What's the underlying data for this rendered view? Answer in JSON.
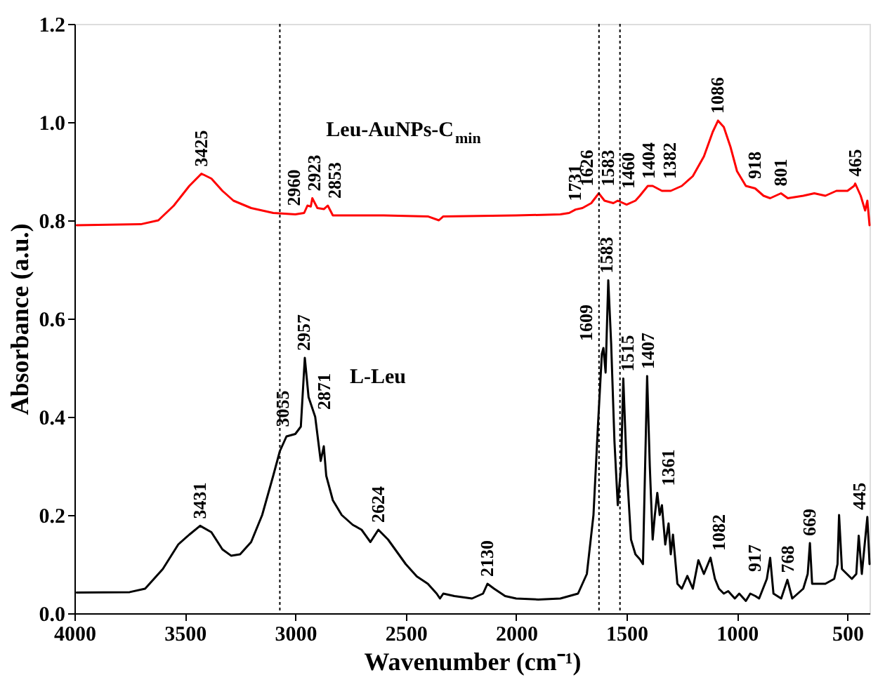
{
  "chart_data": {
    "type": "line",
    "xlabel": "Wavenumber (cm⁻¹)",
    "ylabel": "Absorbance (a.u.)",
    "xlim": [
      4000,
      400
    ],
    "xticks": [
      4000,
      3500,
      3000,
      2500,
      2000,
      1500,
      1000,
      500
    ],
    "ylim": [
      0,
      1.2
    ],
    "yticks": [
      {
        "value": 0,
        "label": "0.0"
      },
      0.2,
      0.4,
      0.6,
      0.8,
      {
        "value": 1,
        "label": "1.0"
      },
      1.2
    ],
    "grid": false,
    "legend": false,
    "marker": "none",
    "line_style": "solid",
    "series": [
      {
        "name": "Leu-AuNPs-C$_{min}$",
        "color": "#ff0000",
        "x": [
          3990,
          3700,
          3620,
          3550,
          3480,
          3425,
          3380,
          3330,
          3280,
          3200,
          3100,
          3000,
          2960,
          2945,
          2930,
          2923,
          2900,
          2870,
          2853,
          2830,
          2600,
          2400,
          2350,
          2330,
          2000,
          1800,
          1760,
          1731,
          1700,
          1660,
          1626,
          1600,
          1560,
          1540,
          1500,
          1460,
          1440,
          1404,
          1382,
          1340,
          1300,
          1250,
          1200,
          1150,
          1110,
          1086,
          1060,
          1030,
          1000,
          960,
          918,
          880,
          850,
          801,
          770,
          700,
          650,
          600,
          550,
          500,
          470,
          465,
          440,
          420,
          410,
          400
        ],
        "values": [
          0.79,
          0.792,
          0.8,
          0.83,
          0.87,
          0.895,
          0.885,
          0.86,
          0.84,
          0.825,
          0.815,
          0.812,
          0.815,
          0.83,
          0.828,
          0.845,
          0.825,
          0.823,
          0.83,
          0.81,
          0.81,
          0.808,
          0.8,
          0.808,
          0.81,
          0.812,
          0.815,
          0.822,
          0.825,
          0.835,
          0.855,
          0.84,
          0.835,
          0.84,
          0.832,
          0.84,
          0.85,
          0.87,
          0.87,
          0.86,
          0.86,
          0.87,
          0.89,
          0.93,
          0.98,
          1.003,
          0.99,
          0.95,
          0.9,
          0.87,
          0.865,
          0.85,
          0.845,
          0.855,
          0.845,
          0.85,
          0.855,
          0.85,
          0.86,
          0.86,
          0.87,
          0.875,
          0.85,
          0.82,
          0.84,
          0.79
        ]
      },
      {
        "name": "L-Leu",
        "color": "#000000",
        "x": [
          3990,
          3750,
          3680,
          3600,
          3530,
          3480,
          3431,
          3380,
          3330,
          3290,
          3250,
          3200,
          3150,
          3100,
          3070,
          3040,
          3000,
          2975,
          2957,
          2940,
          2910,
          2885,
          2871,
          2860,
          2830,
          2790,
          2740,
          2700,
          2660,
          2624,
          2580,
          2500,
          2450,
          2400,
          2360,
          2345,
          2330,
          2280,
          2200,
          2150,
          2130,
          2100,
          2050,
          2000,
          1900,
          1800,
          1720,
          1680,
          1650,
          1630,
          1612,
          1605,
          1595,
          1583,
          1570,
          1555,
          1540,
          1525,
          1515,
          1500,
          1480,
          1460,
          1440,
          1426,
          1407,
          1395,
          1382,
          1372,
          1361,
          1350,
          1340,
          1325,
          1310,
          1300,
          1290,
          1270,
          1250,
          1225,
          1200,
          1175,
          1150,
          1120,
          1100,
          1082,
          1060,
          1040,
          1010,
          990,
          960,
          940,
          917,
          900,
          865,
          850,
          835,
          800,
          772,
          750,
          700,
          680,
          670,
          660,
          600,
          560,
          545,
          538,
          525,
          480,
          460,
          449,
          435,
          410,
          400
        ],
        "values": [
          0.042,
          0.043,
          0.05,
          0.09,
          0.14,
          0.16,
          0.178,
          0.165,
          0.13,
          0.117,
          0.12,
          0.145,
          0.2,
          0.28,
          0.33,
          0.36,
          0.365,
          0.38,
          0.52,
          0.44,
          0.4,
          0.31,
          0.34,
          0.28,
          0.23,
          0.2,
          0.18,
          0.17,
          0.145,
          0.17,
          0.15,
          0.1,
          0.075,
          0.06,
          0.04,
          0.03,
          0.04,
          0.035,
          0.03,
          0.04,
          0.06,
          0.05,
          0.035,
          0.03,
          0.028,
          0.03,
          0.04,
          0.08,
          0.2,
          0.38,
          0.528,
          0.54,
          0.49,
          0.678,
          0.55,
          0.35,
          0.22,
          0.3,
          0.478,
          0.3,
          0.15,
          0.12,
          0.11,
          0.1,
          0.483,
          0.3,
          0.15,
          0.2,
          0.245,
          0.2,
          0.22,
          0.14,
          0.183,
          0.12,
          0.16,
          0.06,
          0.05,
          0.076,
          0.05,
          0.108,
          0.08,
          0.113,
          0.07,
          0.05,
          0.04,
          0.045,
          0.03,
          0.04,
          0.025,
          0.04,
          0.035,
          0.03,
          0.07,
          0.113,
          0.04,
          0.03,
          0.068,
          0.03,
          0.05,
          0.08,
          0.143,
          0.06,
          0.06,
          0.07,
          0.1,
          0.2,
          0.09,
          0.07,
          0.08,
          0.158,
          0.08,
          0.196,
          0.1
        ]
      }
    ],
    "ref_lines": [
      {
        "axis": "x",
        "value": 3070,
        "color": "#000000",
        "line_style": "dotted"
      },
      {
        "axis": "x",
        "value": 1625,
        "color": "#000000",
        "line_style": "dotted"
      },
      {
        "axis": "x",
        "value": 1530,
        "color": "#000000",
        "line_style": "dotted"
      }
    ],
    "annotations": [
      {
        "text": "3425",
        "x": 3425,
        "y": 0.895
      },
      {
        "text": "2960",
        "x": 2960,
        "y": 0.815
      },
      {
        "text": "2923",
        "x": 2923,
        "y": 0.845
      },
      {
        "text": "2853",
        "x": 2853,
        "y": 0.83
      },
      {
        "text": "1731",
        "x": 1731,
        "y": 0.822
      },
      {
        "text": "1626",
        "x": 1626,
        "y": 0.855
      },
      {
        "text": "1583",
        "x": 1583,
        "y": 0.835
      },
      {
        "text": "1460",
        "x": 1460,
        "y": 0.84
      },
      {
        "text": "1404",
        "x": 1404,
        "y": 0.87
      },
      {
        "text": "1382",
        "x": 1382,
        "y": 0.87
      },
      {
        "text": "1086",
        "x": 1086,
        "y": 1.003
      },
      {
        "text": "918",
        "x": 918,
        "y": 0.865
      },
      {
        "text": "801",
        "x": 801,
        "y": 0.855
      },
      {
        "text": "465",
        "x": 465,
        "y": 0.875
      },
      {
        "text": "3431",
        "x": 3431,
        "y": 0.178
      },
      {
        "text": "3055",
        "x": 3055,
        "y": 0.36
      },
      {
        "text": "2957",
        "x": 2957,
        "y": 0.52
      },
      {
        "text": "2871",
        "x": 2871,
        "y": 0.34
      },
      {
        "text": "2624",
        "x": 2624,
        "y": 0.17
      },
      {
        "text": "2130",
        "x": 2130,
        "y": 0.06
      },
      {
        "text": "1609",
        "x": 1609,
        "y": 0.54
      },
      {
        "text": "1583",
        "x": 1583,
        "y": 0.678
      },
      {
        "text": "1515",
        "x": 1515,
        "y": 0.478
      },
      {
        "text": "1407",
        "x": 1407,
        "y": 0.483
      },
      {
        "text": "1361",
        "x": 1361,
        "y": 0.245
      },
      {
        "text": "1082",
        "x": 1082,
        "y": 0.05
      },
      {
        "text": "917",
        "x": 917,
        "y": 0.035
      },
      {
        "text": "768",
        "x": 768,
        "y": 0.068
      },
      {
        "text": "669",
        "x": 669,
        "y": 0.143
      },
      {
        "text": "445",
        "x": 445,
        "y": 0.158
      }
    ]
  }
}
